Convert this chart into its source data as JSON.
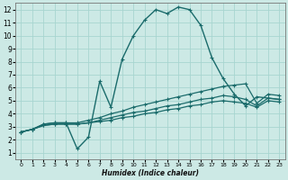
{
  "xlabel": "Humidex (Indice chaleur)",
  "xlim": [
    -0.5,
    23.5
  ],
  "ylim": [
    0.5,
    12.5
  ],
  "xticks": [
    0,
    1,
    2,
    3,
    4,
    5,
    6,
    7,
    8,
    9,
    10,
    11,
    12,
    13,
    14,
    15,
    16,
    17,
    18,
    19,
    20,
    21,
    22,
    23
  ],
  "yticks": [
    1,
    2,
    3,
    4,
    5,
    6,
    7,
    8,
    9,
    10,
    11,
    12
  ],
  "bg_color": "#cce9e5",
  "grid_color": "#a8d5d0",
  "line_color": "#1a6b6b",
  "series": [
    {
      "x": [
        0,
        1,
        2,
        3,
        4,
        5,
        6,
        7,
        8,
        9,
        10,
        11,
        12,
        13,
        14,
        15,
        16,
        17,
        18,
        19,
        20,
        21,
        22,
        23
      ],
      "y": [
        2.6,
        2.8,
        3.2,
        3.3,
        3.3,
        1.3,
        2.2,
        6.5,
        4.5,
        8.2,
        10.0,
        11.2,
        12.0,
        11.7,
        12.2,
        12.0,
        10.8,
        8.3,
        6.7,
        5.5,
        4.6,
        5.3,
        5.2,
        5.1
      ]
    },
    {
      "x": [
        0,
        1,
        2,
        3,
        4,
        5,
        6,
        7,
        8,
        9,
        10,
        11,
        12,
        13,
        14,
        15,
        16,
        17,
        18,
        19,
        20,
        21,
        22,
        23
      ],
      "y": [
        2.6,
        2.8,
        3.2,
        3.3,
        3.3,
        3.3,
        3.5,
        3.7,
        4.0,
        4.2,
        4.5,
        4.7,
        4.9,
        5.1,
        5.3,
        5.5,
        5.7,
        5.9,
        6.1,
        6.2,
        6.3,
        4.8,
        5.5,
        5.4
      ]
    },
    {
      "x": [
        0,
        1,
        2,
        3,
        4,
        5,
        6,
        7,
        8,
        9,
        10,
        11,
        12,
        13,
        14,
        15,
        16,
        17,
        18,
        19,
        20,
        21,
        22,
        23
      ],
      "y": [
        2.6,
        2.8,
        3.1,
        3.2,
        3.2,
        3.2,
        3.3,
        3.5,
        3.7,
        3.9,
        4.1,
        4.2,
        4.4,
        4.6,
        4.7,
        4.9,
        5.1,
        5.2,
        5.4,
        5.3,
        5.1,
        4.6,
        5.2,
        5.1
      ]
    },
    {
      "x": [
        0,
        1,
        2,
        3,
        4,
        5,
        6,
        7,
        8,
        9,
        10,
        11,
        12,
        13,
        14,
        15,
        16,
        17,
        18,
        19,
        20,
        21,
        22,
        23
      ],
      "y": [
        2.6,
        2.8,
        3.1,
        3.2,
        3.2,
        3.2,
        3.3,
        3.4,
        3.5,
        3.7,
        3.8,
        4.0,
        4.1,
        4.3,
        4.4,
        4.6,
        4.7,
        4.9,
        5.0,
        4.9,
        4.8,
        4.5,
        5.0,
        4.9
      ]
    }
  ]
}
